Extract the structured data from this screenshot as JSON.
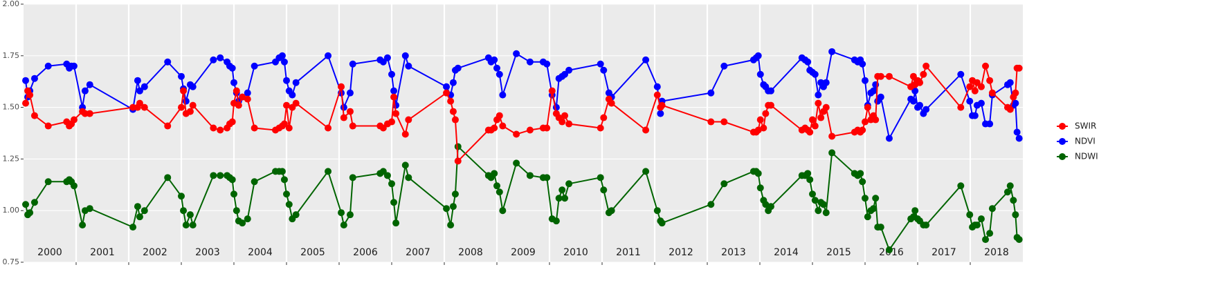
{
  "chart_data": {
    "type": "line",
    "legend": "right",
    "grid": true,
    "xlim": [
      2000,
      2019
    ],
    "ylim": [
      0.75,
      2.0
    ],
    "yticks": [
      {
        "value": 0.75,
        "label": "0.75"
      },
      {
        "value": 1,
        "label": "1.00"
      },
      {
        "value": 1.25,
        "label": "1.25"
      },
      {
        "value": 1.5,
        "label": "1.50"
      },
      {
        "value": 1.75,
        "label": "1.75"
      },
      {
        "value": 2,
        "label": "2.00"
      }
    ],
    "xticks": [
      2001,
      2002,
      2003,
      2004,
      2005,
      2006,
      2007,
      2008,
      2009,
      2010,
      2011,
      2012,
      2013,
      2014,
      2015,
      2016,
      2017,
      2018
    ],
    "year_labels": [
      {
        "value": 2000.5,
        "label": "2000"
      },
      {
        "value": 2001.5,
        "label": "2001"
      },
      {
        "value": 2002.5,
        "label": "2002"
      },
      {
        "value": 2003.5,
        "label": "2003"
      },
      {
        "value": 2004.5,
        "label": "2004"
      },
      {
        "value": 2005.5,
        "label": "2005"
      },
      {
        "value": 2006.5,
        "label": "2006"
      },
      {
        "value": 2007.5,
        "label": "2007"
      },
      {
        "value": 2008.5,
        "label": "2008"
      },
      {
        "value": 2009.5,
        "label": "2009"
      },
      {
        "value": 2010.5,
        "label": "2010"
      },
      {
        "value": 2011.5,
        "label": "2011"
      },
      {
        "value": 2012.5,
        "label": "2012"
      },
      {
        "value": 2013.5,
        "label": "2013"
      },
      {
        "value": 2014.5,
        "label": "2014"
      },
      {
        "value": 2015.5,
        "label": "2015"
      },
      {
        "value": 2016.5,
        "label": "2016"
      },
      {
        "value": 2017.5,
        "label": "2017"
      },
      {
        "value": 2018.5,
        "label": "2018"
      }
    ],
    "x": [
      2000.04,
      2000.08,
      2000.12,
      2000.21,
      2000.47,
      2000.82,
      2000.87,
      2000.91,
      2000.96,
      2001.12,
      2001.17,
      2001.26,
      2002.08,
      2002.17,
      2002.21,
      2002.3,
      2002.74,
      2003.0,
      2003.04,
      2003.09,
      2003.17,
      2003.22,
      2003.61,
      2003.74,
      2003.87,
      2003.92,
      2003.97,
      2004.0,
      2004.05,
      2004.09,
      2004.16,
      2004.26,
      2004.39,
      2004.79,
      2004.86,
      2004.92,
      2004.96,
      2005.0,
      2005.05,
      2005.11,
      2005.18,
      2005.79,
      2006.04,
      2006.09,
      2006.21,
      2006.26,
      2006.78,
      2006.84,
      2006.92,
      2007.0,
      2007.04,
      2007.08,
      2007.26,
      2007.32,
      2008.04,
      2008.12,
      2008.17,
      2008.21,
      2008.26,
      2008.84,
      2008.89,
      2008.95,
      2009.0,
      2009.05,
      2009.11,
      2009.37,
      2009.63,
      2009.88,
      2009.95,
      2010.05,
      2010.13,
      2010.18,
      2010.24,
      2010.29,
      2010.37,
      2010.97,
      2011.03,
      2011.13,
      2011.18,
      2011.83,
      2012.05,
      2012.11,
      2012.14,
      2013.07,
      2013.32,
      2013.88,
      2013.93,
      2013.97,
      2014.01,
      2014.07,
      2014.11,
      2014.16,
      2014.21,
      2014.8,
      2014.86,
      2014.91,
      2014.95,
      2015.0,
      2015.05,
      2015.11,
      2015.16,
      2015.21,
      2015.26,
      2015.37,
      2015.8,
      2015.86,
      2015.91,
      2015.95,
      2016.0,
      2016.05,
      2016.11,
      2016.16,
      2016.2,
      2016.24,
      2016.3,
      2016.46,
      2016.87,
      2016.92,
      2016.95,
      2017.0,
      2017.04,
      2017.11,
      2017.16,
      2017.82,
      2017.99,
      2018.04,
      2018.09,
      2018.13,
      2018.21,
      2018.29,
      2018.37,
      2018.42,
      2018.71,
      2018.76,
      2018.82,
      2018.86,
      2018.89,
      2018.93
    ],
    "series": [
      {
        "name": "SWIR",
        "color": "#ff0000",
        "values": [
          1.52,
          1.58,
          1.56,
          1.46,
          1.41,
          1.43,
          1.41,
          1.42,
          1.44,
          1.48,
          1.47,
          1.47,
          1.5,
          1.5,
          1.52,
          1.5,
          1.41,
          1.5,
          1.58,
          1.47,
          1.48,
          1.51,
          1.4,
          1.39,
          1.4,
          1.42,
          1.43,
          1.52,
          1.58,
          1.51,
          1.55,
          1.54,
          1.4,
          1.39,
          1.4,
          1.41,
          1.42,
          1.51,
          1.4,
          1.5,
          1.52,
          1.4,
          1.6,
          1.45,
          1.48,
          1.41,
          1.41,
          1.4,
          1.42,
          1.43,
          1.55,
          1.47,
          1.37,
          1.44,
          1.57,
          1.53,
          1.48,
          1.44,
          1.24,
          1.39,
          1.39,
          1.4,
          1.44,
          1.46,
          1.41,
          1.37,
          1.39,
          1.4,
          1.4,
          1.58,
          1.47,
          1.45,
          1.43,
          1.46,
          1.42,
          1.4,
          1.45,
          1.54,
          1.52,
          1.39,
          1.56,
          1.5,
          1.51,
          1.43,
          1.43,
          1.38,
          1.38,
          1.39,
          1.44,
          1.4,
          1.47,
          1.51,
          1.51,
          1.39,
          1.4,
          1.39,
          1.38,
          1.44,
          1.41,
          1.52,
          1.45,
          1.48,
          1.5,
          1.36,
          1.38,
          1.39,
          1.38,
          1.39,
          1.43,
          1.5,
          1.44,
          1.46,
          1.44,
          1.65,
          1.65,
          1.65,
          1.6,
          1.65,
          1.61,
          1.63,
          1.62,
          1.66,
          1.7,
          1.5,
          1.6,
          1.63,
          1.58,
          1.62,
          1.6,
          1.7,
          1.63,
          1.57,
          1.5,
          1.49,
          1.55,
          1.57,
          1.69,
          1.69
        ]
      },
      {
        "name": "NDVI",
        "color": "#0000ff",
        "values": [
          1.63,
          1.55,
          1.58,
          1.64,
          1.7,
          1.71,
          1.69,
          1.7,
          1.7,
          1.5,
          1.58,
          1.61,
          1.49,
          1.63,
          1.58,
          1.6,
          1.72,
          1.65,
          1.59,
          1.53,
          1.61,
          1.6,
          1.73,
          1.74,
          1.72,
          1.7,
          1.69,
          1.62,
          1.57,
          1.53,
          1.55,
          1.57,
          1.7,
          1.72,
          1.74,
          1.75,
          1.72,
          1.63,
          1.58,
          1.56,
          1.62,
          1.75,
          1.57,
          1.5,
          1.57,
          1.71,
          1.73,
          1.72,
          1.74,
          1.66,
          1.58,
          1.51,
          1.75,
          1.7,
          1.6,
          1.56,
          1.62,
          1.68,
          1.69,
          1.74,
          1.72,
          1.73,
          1.69,
          1.66,
          1.56,
          1.76,
          1.72,
          1.72,
          1.71,
          1.56,
          1.5,
          1.64,
          1.65,
          1.66,
          1.68,
          1.71,
          1.68,
          1.57,
          1.55,
          1.73,
          1.6,
          1.47,
          1.53,
          1.57,
          1.7,
          1.73,
          1.74,
          1.75,
          1.66,
          1.61,
          1.6,
          1.58,
          1.58,
          1.74,
          1.73,
          1.72,
          1.68,
          1.67,
          1.66,
          1.56,
          1.62,
          1.6,
          1.62,
          1.77,
          1.73,
          1.72,
          1.73,
          1.71,
          1.63,
          1.51,
          1.57,
          1.58,
          1.61,
          1.53,
          1.55,
          1.35,
          1.54,
          1.53,
          1.58,
          1.5,
          1.51,
          1.47,
          1.49,
          1.66,
          1.53,
          1.46,
          1.46,
          1.51,
          1.52,
          1.42,
          1.42,
          1.56,
          1.61,
          1.62,
          1.51,
          1.52,
          1.38,
          1.35
        ]
      },
      {
        "name": "NDWI",
        "color": "#006400",
        "values": [
          1.03,
          0.98,
          0.99,
          1.04,
          1.14,
          1.14,
          1.15,
          1.14,
          1.12,
          0.93,
          1.0,
          1.01,
          0.92,
          1.02,
          0.97,
          1.0,
          1.16,
          1.07,
          1.0,
          0.93,
          0.98,
          0.93,
          1.17,
          1.17,
          1.17,
          1.16,
          1.15,
          1.08,
          1.0,
          0.95,
          0.94,
          0.96,
          1.14,
          1.19,
          1.19,
          1.19,
          1.15,
          1.08,
          1.03,
          0.96,
          0.98,
          1.19,
          0.99,
          0.93,
          0.98,
          1.16,
          1.18,
          1.19,
          1.17,
          1.13,
          1.04,
          0.94,
          1.22,
          1.16,
          1.01,
          0.93,
          1.02,
          1.08,
          1.31,
          1.17,
          1.16,
          1.18,
          1.12,
          1.09,
          1.0,
          1.23,
          1.17,
          1.16,
          1.16,
          0.96,
          0.95,
          1.06,
          1.1,
          1.06,
          1.13,
          1.16,
          1.1,
          0.99,
          1.0,
          1.19,
          1.0,
          0.95,
          0.94,
          1.03,
          1.13,
          1.19,
          1.19,
          1.18,
          1.11,
          1.05,
          1.03,
          1.0,
          1.02,
          1.17,
          1.17,
          1.18,
          1.15,
          1.08,
          1.05,
          1.0,
          1.04,
          1.03,
          0.99,
          1.28,
          1.18,
          1.17,
          1.18,
          1.14,
          1.06,
          0.97,
          1.0,
          1.01,
          1.06,
          0.92,
          0.92,
          0.81,
          0.96,
          0.97,
          1.0,
          0.96,
          0.95,
          0.93,
          0.93,
          1.12,
          0.98,
          0.92,
          0.93,
          0.93,
          0.96,
          0.86,
          0.89,
          1.01,
          1.09,
          1.12,
          1.05,
          0.98,
          0.87,
          0.86
        ]
      }
    ]
  }
}
